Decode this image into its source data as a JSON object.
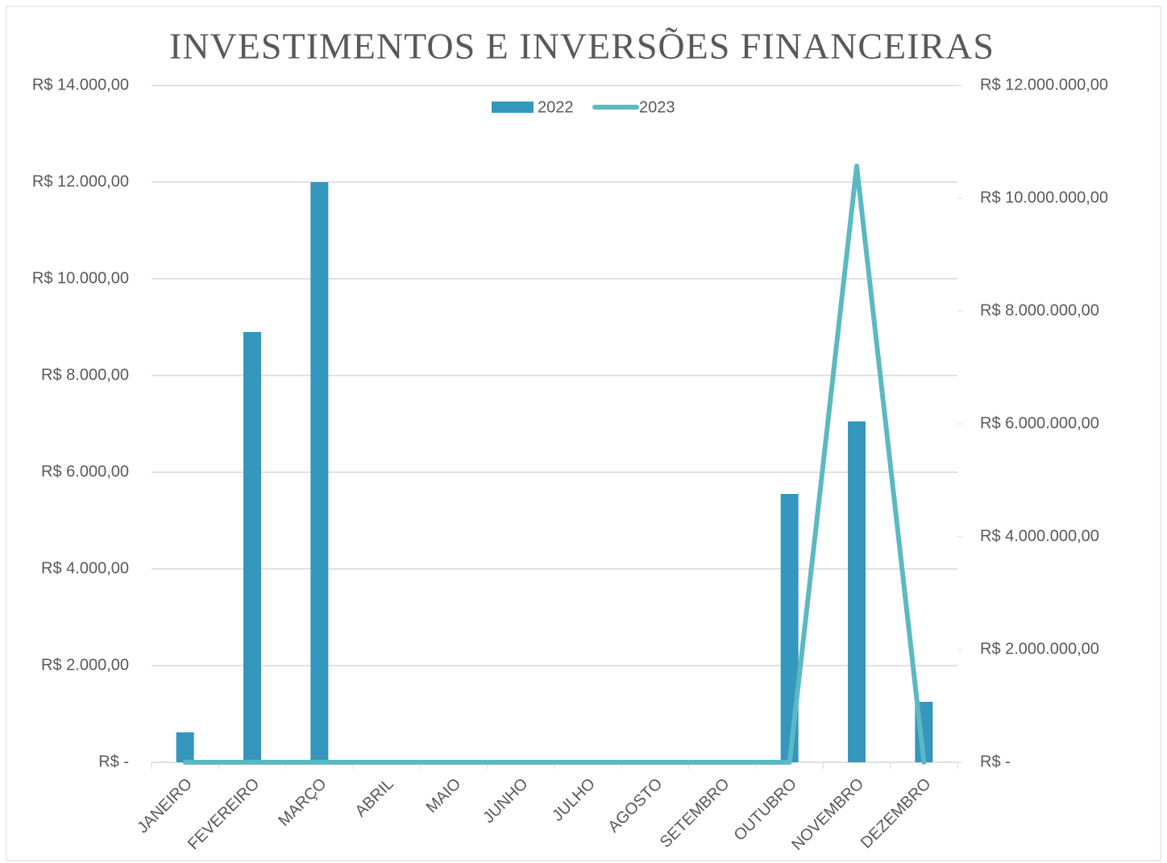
{
  "chart_data": {
    "type": "bar_line",
    "title": "INVESTIMENTOS E INVERSÕES FINANCEIRAS",
    "categories": [
      "JANEIRO",
      "FEVEREIRO",
      "MARÇO",
      "ABRIL",
      "MAIO",
      "JUNHO",
      "JULHO",
      "AGOSTO",
      "SETEMBRO",
      "OUTUBRO",
      "NOVEMBRO",
      "DEZEMBRO"
    ],
    "series": [
      {
        "name": "2022",
        "type": "bar",
        "color": "#3596be",
        "values": [
          620,
          8900,
          12000,
          0,
          0,
          0,
          0,
          0,
          0,
          5550,
          7050,
          1250
        ]
      },
      {
        "name": "2023",
        "type": "line",
        "axis": "y2",
        "color": "#5bb9c2",
        "values": [
          0,
          0,
          0,
          0,
          0,
          0,
          0,
          0,
          0,
          0,
          10570000,
          0
        ]
      }
    ],
    "ylim": [
      0,
      14000
    ],
    "yticks": [
      {
        "value": 0,
        "label": "R$ -"
      },
      {
        "value": 2000,
        "label": "R$ 2.000,00"
      },
      {
        "value": 4000,
        "label": "R$ 4.000,00"
      },
      {
        "value": 6000,
        "label": "R$ 6.000,00"
      },
      {
        "value": 8000,
        "label": "R$ 8.000,00"
      },
      {
        "value": 10000,
        "label": "R$ 10.000,00"
      },
      {
        "value": 12000,
        "label": "R$ 12.000,00"
      },
      {
        "value": 14000,
        "label": "R$ 14.000,00"
      }
    ],
    "y2lim": [
      0,
      12000000
    ],
    "y2ticks": [
      {
        "value": 0,
        "label": "R$ -"
      },
      {
        "value": 2000000,
        "label": "R$ 2.000.000,00"
      },
      {
        "value": 4000000,
        "label": "R$ 4.000.000,00"
      },
      {
        "value": 6000000,
        "label": "R$ 6.000.000,00"
      },
      {
        "value": 8000000,
        "label": "R$ 8.000.000,00"
      },
      {
        "value": 10000000,
        "label": "R$ 10.000.000,00"
      },
      {
        "value": 12000000,
        "label": "R$ 12.000.000,00"
      }
    ],
    "grid": true,
    "legend": "top"
  }
}
